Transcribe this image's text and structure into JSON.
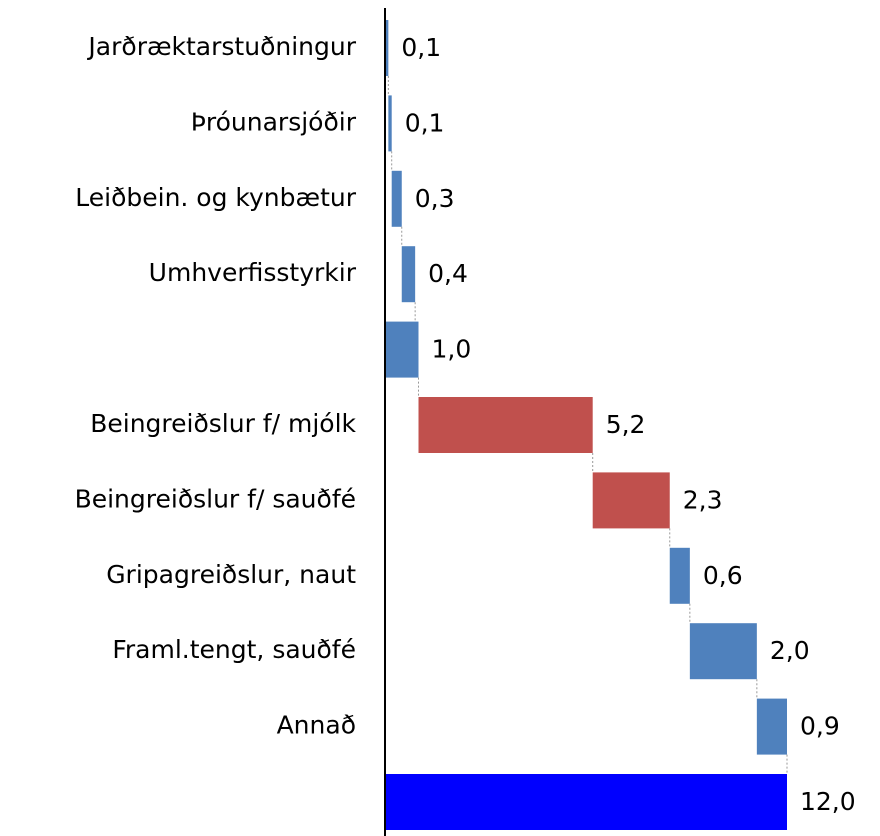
{
  "chart_data": {
    "type": "waterfall",
    "categories": [
      "Jarðræktarstuðningur",
      "Þróunarsjóðir",
      "Leiðbein. og kynbætur",
      "Umhverfisstyrkir",
      null,
      "Beingreiðslur f/ mjólk",
      "Beingreiðslur f/ sauðfé",
      "Gripagreiðslur, naut",
      "Framl.tengt, sauðfé",
      "Annað",
      null
    ],
    "values": [
      0.1,
      0.1,
      0.3,
      0.4,
      1.0,
      5.2,
      2.3,
      0.6,
      2.0,
      0.9,
      12.0
    ],
    "value_labels": [
      "0,1",
      "0,1",
      "0,3",
      "0,4",
      "1,0",
      "5,2",
      "2,3",
      "0,6",
      "2,0",
      "0,9",
      "12,0"
    ],
    "colors": [
      "#4f81bd",
      "#4f81bd",
      "#4f81bd",
      "#4f81bd",
      "#4f81bd",
      "#c0504d",
      "#c0504d",
      "#4f81bd",
      "#4f81bd",
      "#4f81bd",
      "#0000ff"
    ],
    "totals": [
      4,
      10
    ],
    "xlim": [
      0,
      14
    ]
  }
}
